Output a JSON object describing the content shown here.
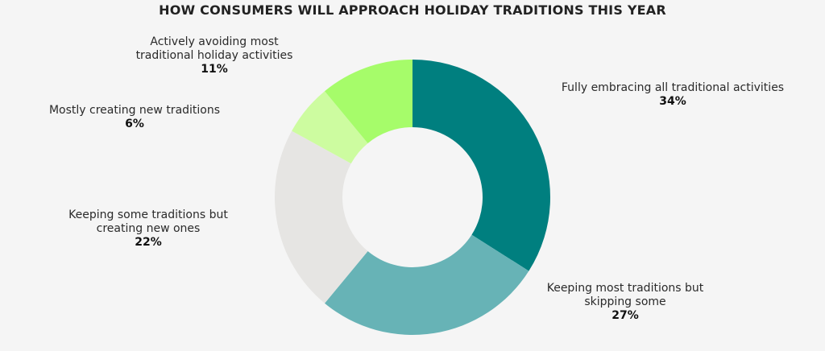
{
  "chart_data": {
    "type": "pie",
    "title": "HOW CONSUMERS WILL APPROACH HOLIDAY TRADITIONS THIS YEAR",
    "slices": [
      {
        "label": "Fully embracing all traditional activities",
        "value": 34,
        "value_label": "34%",
        "color": "#007f7f"
      },
      {
        "label": "Keeping most traditions but skipping some",
        "value": 27,
        "value_label": "27%",
        "color": "#67b3b6"
      },
      {
        "label": "Keeping some traditions but creating new ones",
        "value": 22,
        "value_label": "22%",
        "color": "#e6e5e3"
      },
      {
        "label": "Mostly creating new traditions",
        "value": 6,
        "value_label": "6%",
        "color": "#cdfca0"
      },
      {
        "label": "Actively avoiding most traditional holiday activities",
        "value": 11,
        "value_label": "11%",
        "color": "#a6fc6a"
      }
    ]
  }
}
